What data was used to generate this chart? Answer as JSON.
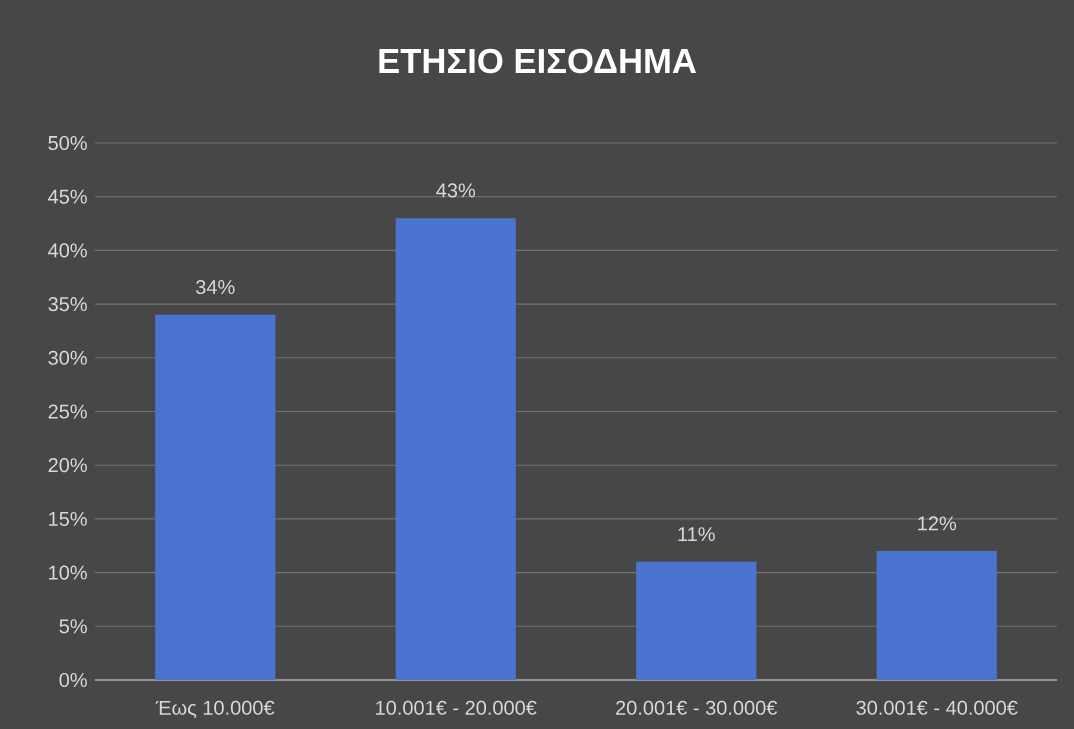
{
  "chart_data": {
    "type": "bar",
    "title": "ΕΤΗΣΙΟ ΕΙΣΟΔΗΜΑ",
    "categories": [
      "Έως 10.000€",
      "10.001€ - 20.000€",
      "20.001€ - 30.000€",
      "30.001€ - 40.000€"
    ],
    "values": [
      34,
      43,
      11,
      12
    ],
    "value_labels": [
      "34%",
      "43%",
      "11%",
      "12%"
    ],
    "color": "#4a74cf",
    "ylim": [
      0,
      50
    ],
    "yticks": [
      {
        "value": 0,
        "label": "0%"
      },
      {
        "value": 5,
        "label": "5%"
      },
      {
        "value": 10,
        "label": "10%"
      },
      {
        "value": 15,
        "label": "15%"
      },
      {
        "value": 20,
        "label": "20%"
      },
      {
        "value": 25,
        "label": "25%"
      },
      {
        "value": 30,
        "label": "30%"
      },
      {
        "value": 35,
        "label": "35%"
      },
      {
        "value": 40,
        "label": "40%"
      },
      {
        "value": 45,
        "label": "45%"
      },
      {
        "value": 50,
        "label": "50%"
      }
    ],
    "grid": "y"
  }
}
